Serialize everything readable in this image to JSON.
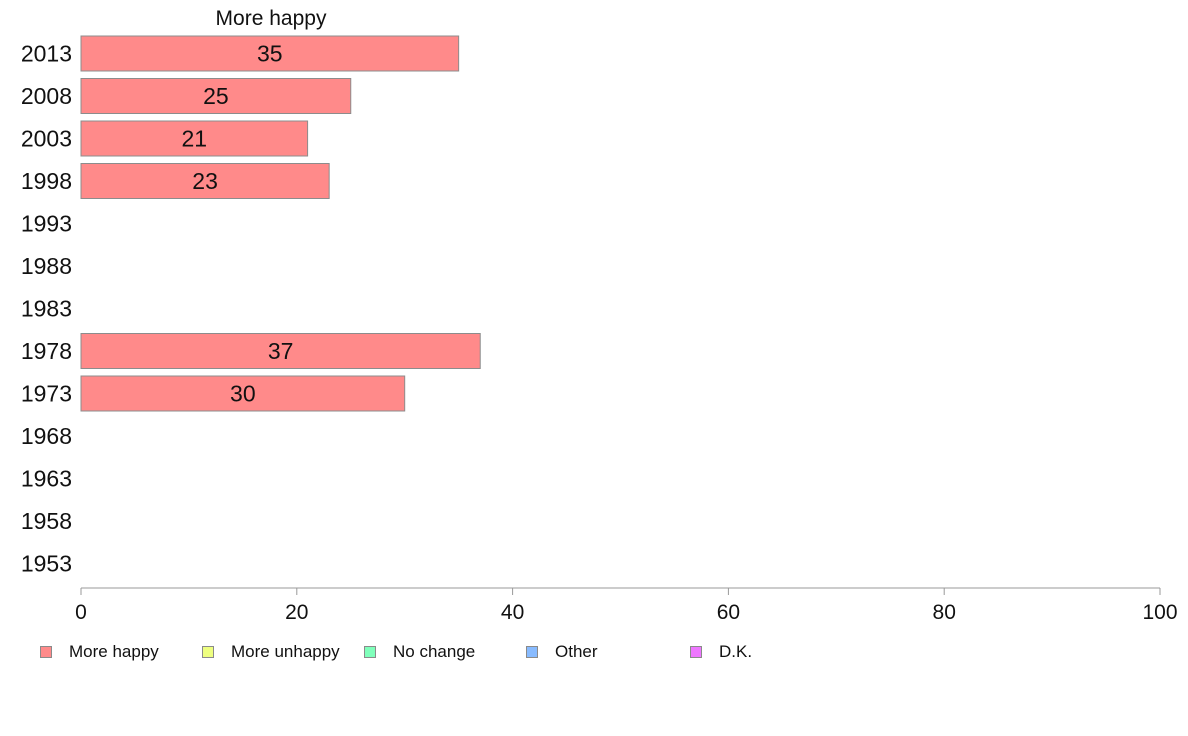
{
  "chart_data": {
    "type": "bar",
    "orientation": "horizontal",
    "title": "More happy",
    "xlabel": "",
    "ylabel": "",
    "xlim": [
      0,
      100
    ],
    "xticks": [
      0,
      20,
      40,
      60,
      80,
      100
    ],
    "categories": [
      "2013",
      "2008",
      "2003",
      "1998",
      "1993",
      "1988",
      "1983",
      "1978",
      "1973",
      "1968",
      "1963",
      "1958",
      "1953"
    ],
    "series": [
      {
        "name": "More happy",
        "color": "#ff8a8a",
        "values": [
          35,
          25,
          21,
          23,
          null,
          null,
          null,
          37,
          30,
          null,
          null,
          null,
          null
        ]
      }
    ],
    "legend": {
      "placement": "bottom-left",
      "items": [
        {
          "label": "More happy",
          "color": "#ff8a8a"
        },
        {
          "label": "More unhappy",
          "color": "#eeff80"
        },
        {
          "label": "No change",
          "color": "#80ffbb"
        },
        {
          "label": "Other",
          "color": "#88bbff"
        },
        {
          "label": "D.K.",
          "color": "#ee77ff"
        }
      ]
    },
    "grid": false
  }
}
